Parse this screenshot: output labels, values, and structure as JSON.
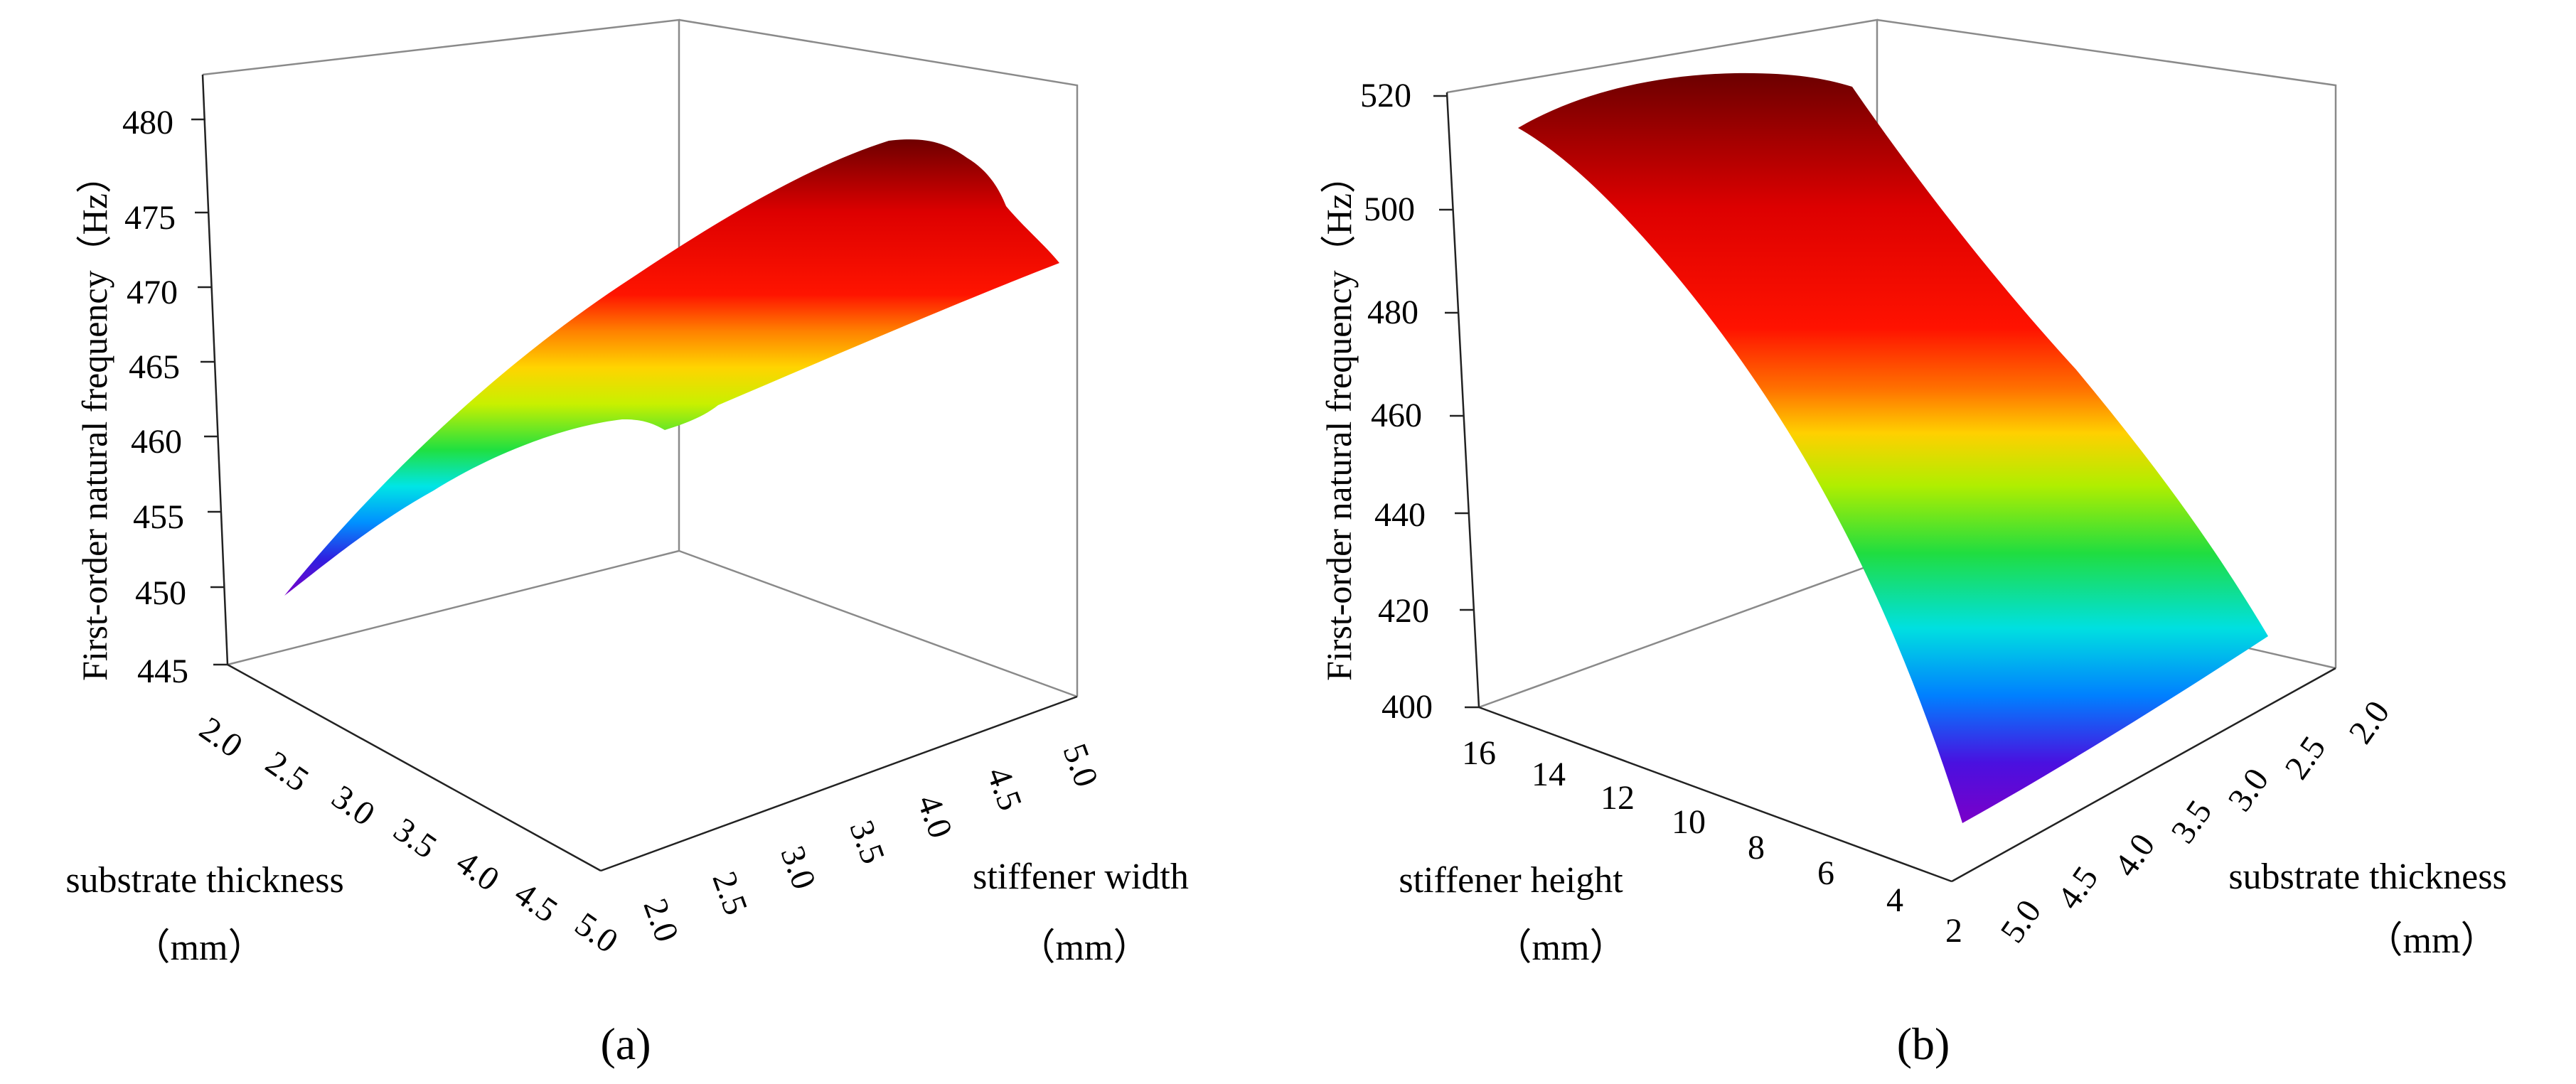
{
  "figure": {
    "panel_a_label": "(a)",
    "panel_b_label": "(b)"
  },
  "chart_data": [
    {
      "type": "surface",
      "panel": "a",
      "zlabel": "First-order natural frequency（Hz）",
      "xlabel": "substrate thickness",
      "xlabel_unit": "（mm）",
      "ylabel": "stiffener width",
      "ylabel_unit": "（mm）",
      "x_ticks": [
        "2.0",
        "2.5",
        "3.0",
        "3.5",
        "4.0",
        "4.5",
        "5.0"
      ],
      "y_ticks": [
        "2.0",
        "2.5",
        "3.0",
        "3.5",
        "4.0",
        "4.5",
        "5.0"
      ],
      "z_ticks": [
        "445",
        "450",
        "455",
        "460",
        "465",
        "470",
        "475",
        "480"
      ],
      "zlim": [
        445,
        482
      ],
      "colormap": "rainbow (violet low → dark red high)",
      "surface_samples": {
        "description": "approximate frequency values along visible surface",
        "front_edge_stiffener_width_2_to_5_at_thickness_5": [
          450,
          456,
          460,
          463,
          466,
          469,
          472
        ],
        "ridge_max": 479,
        "low_corner": 450
      }
    },
    {
      "type": "surface",
      "panel": "b",
      "zlabel": "First-order natural frequency（Hz）",
      "xlabel": "stiffener height",
      "xlabel_unit": "（mm）",
      "ylabel": "substrate thickness",
      "ylabel_unit": "（mm）",
      "x_ticks": [
        "16",
        "14",
        "12",
        "10",
        "8",
        "6",
        "4",
        "2"
      ],
      "y_ticks": [
        "5.0",
        "4.5",
        "4.0",
        "3.5",
        "3.0",
        "2.5",
        "2.0"
      ],
      "z_ticks": [
        "400",
        "420",
        "440",
        "460",
        "480",
        "500",
        "520"
      ],
      "zlim": [
        400,
        520
      ],
      "colormap": "rainbow (violet low → dark red high)",
      "surface_samples": {
        "description": "frequency decreases as stiffener height decreases",
        "max_at_height_16": 515,
        "min_at_height_2": 400
      }
    }
  ]
}
